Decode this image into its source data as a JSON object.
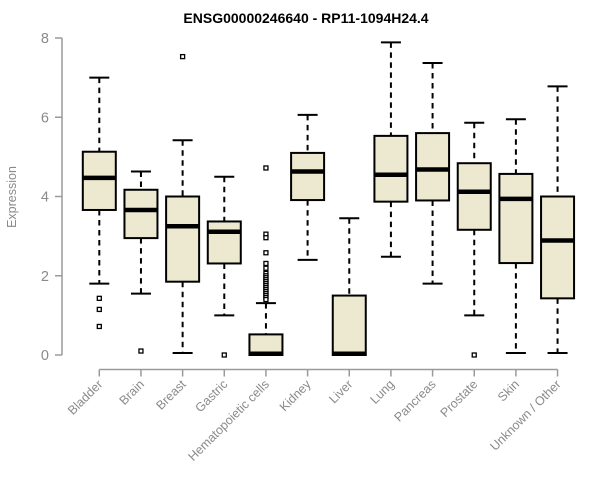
{
  "chart_data": {
    "type": "boxplot",
    "title": "ENSG00000246640 - RP11-1094H24.4",
    "ylabel": "Expression",
    "xlabel": "",
    "ylim": [
      0,
      8
    ],
    "yticks": [
      0,
      2,
      4,
      6,
      8
    ],
    "grid": false,
    "legend": "none",
    "categories": [
      "Bladder",
      "Brain",
      "Breast",
      "Gastric",
      "Hematopoietic cells",
      "Kidney",
      "Liver",
      "Lung",
      "Pancreas",
      "Prostate",
      "Skin",
      "Unknown / Other"
    ],
    "series": [
      {
        "name": "Bladder",
        "whisker_low": 1.8,
        "q1": 3.66,
        "median": 4.47,
        "q3": 5.13,
        "whisker_high": 7.0,
        "outliers": [
          1.43,
          1.15,
          0.72
        ]
      },
      {
        "name": "Brain",
        "whisker_low": 1.55,
        "q1": 2.95,
        "median": 3.66,
        "q3": 4.17,
        "whisker_high": 4.63,
        "outliers": [
          0.1
        ]
      },
      {
        "name": "Breast",
        "whisker_low": 0.05,
        "q1": 1.85,
        "median": 3.25,
        "q3": 4.0,
        "whisker_high": 5.42,
        "outliers": [
          7.53
        ]
      },
      {
        "name": "Gastric",
        "whisker_low": 1.0,
        "q1": 2.31,
        "median": 3.11,
        "q3": 3.37,
        "whisker_high": 4.5,
        "outliers": [
          0.0
        ]
      },
      {
        "name": "Hematopoietic cells",
        "whisker_low": 0.0,
        "q1": 0.0,
        "median": 0.03,
        "q3": 0.52,
        "whisker_high": 1.31,
        "outliers": [
          4.72,
          3.05,
          2.96,
          2.58,
          2.31,
          2.19,
          2.06,
          2.0,
          1.95,
          1.9,
          1.85,
          1.8,
          1.75,
          1.7,
          1.65,
          1.6,
          1.55,
          1.5,
          1.45,
          1.4
        ]
      },
      {
        "name": "Kidney",
        "whisker_low": 2.4,
        "q1": 3.91,
        "median": 4.63,
        "q3": 5.1,
        "whisker_high": 6.06,
        "outliers": []
      },
      {
        "name": "Liver",
        "whisker_low": 0.0,
        "q1": 0.0,
        "median": 0.03,
        "q3": 1.5,
        "whisker_high": 3.45,
        "outliers": []
      },
      {
        "name": "Lung",
        "whisker_low": 2.48,
        "q1": 3.87,
        "median": 4.55,
        "q3": 5.53,
        "whisker_high": 7.89,
        "outliers": []
      },
      {
        "name": "Pancreas",
        "whisker_low": 1.8,
        "q1": 3.9,
        "median": 4.68,
        "q3": 5.6,
        "whisker_high": 7.37,
        "outliers": []
      },
      {
        "name": "Prostate",
        "whisker_low": 1.0,
        "q1": 3.16,
        "median": 4.12,
        "q3": 4.84,
        "whisker_high": 5.86,
        "outliers": [
          0.0
        ]
      },
      {
        "name": "Skin",
        "whisker_low": 0.05,
        "q1": 2.32,
        "median": 3.94,
        "q3": 4.57,
        "whisker_high": 5.95,
        "outliers": []
      },
      {
        "name": "Unknown / Other",
        "whisker_low": 0.05,
        "q1": 1.43,
        "median": 2.89,
        "q3": 4.0,
        "whisker_high": 6.78,
        "outliers": []
      }
    ],
    "colors": {
      "box_fill": "#EDE8D0",
      "box_stroke": "#000000",
      "median": "#000000",
      "whisker": "#000000",
      "outlier": "#000000",
      "axis": "#9A9A9A",
      "tick_label": "#8A8A8A",
      "title": "#000000",
      "background": "#FFFFFF"
    }
  }
}
